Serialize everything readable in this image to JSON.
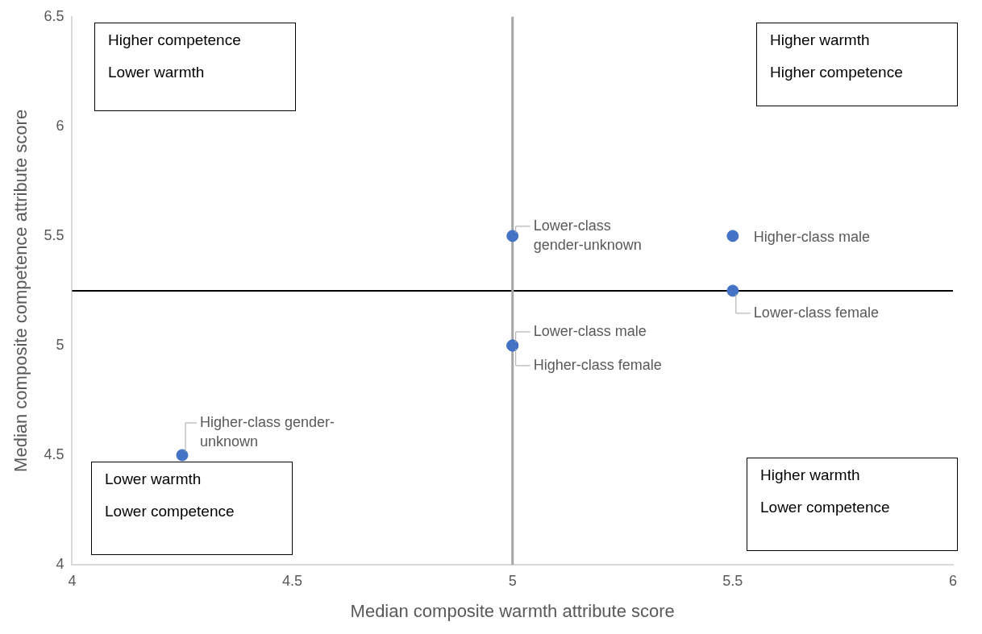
{
  "chart_data": {
    "type": "scatter",
    "xlabel": "Median composite warmth attribute score",
    "ylabel": "Median composite competence attribute score",
    "x": [
      5,
      5.5,
      5.5,
      5,
      5,
      4.25
    ],
    "values": [
      5.5,
      5.5,
      5.25,
      5,
      5,
      4.5
    ],
    "color": "#4472c4",
    "marker": "circle",
    "legend": false,
    "grid": false,
    "xlim": [
      4,
      6
    ],
    "xticks": [
      4,
      4.5,
      5,
      5.5,
      6
    ],
    "ylim": [
      4,
      6.5
    ],
    "yticks": [
      4,
      4.5,
      5,
      5.5,
      6,
      6.5
    ],
    "ref_lines": [
      {
        "axis": "y",
        "value": 5.25,
        "color": "#000000"
      },
      {
        "axis": "x",
        "value": 5,
        "color": "#a6a6a6"
      }
    ],
    "annotations": [
      {
        "text": "Lower-class gender-unknown",
        "x": 5,
        "y": 5.5
      },
      {
        "text": "Higher-class male",
        "x": 5.5,
        "y": 5.5
      },
      {
        "text": "Lower-class female",
        "x": 5.5,
        "y": 5.25
      },
      {
        "text": "Lower-class male",
        "x": 5,
        "y": 5
      },
      {
        "text": "Higher-class female",
        "x": 5,
        "y": 5
      },
      {
        "text": "Higher-class gender-unknown",
        "x": 4.25,
        "y": 4.5
      },
      "Higher competence\nLower warmth",
      "Higher warmth\nHigher competence",
      "Lower warmth\nLower competence",
      "Higher warmth\nLower competence"
    ]
  }
}
